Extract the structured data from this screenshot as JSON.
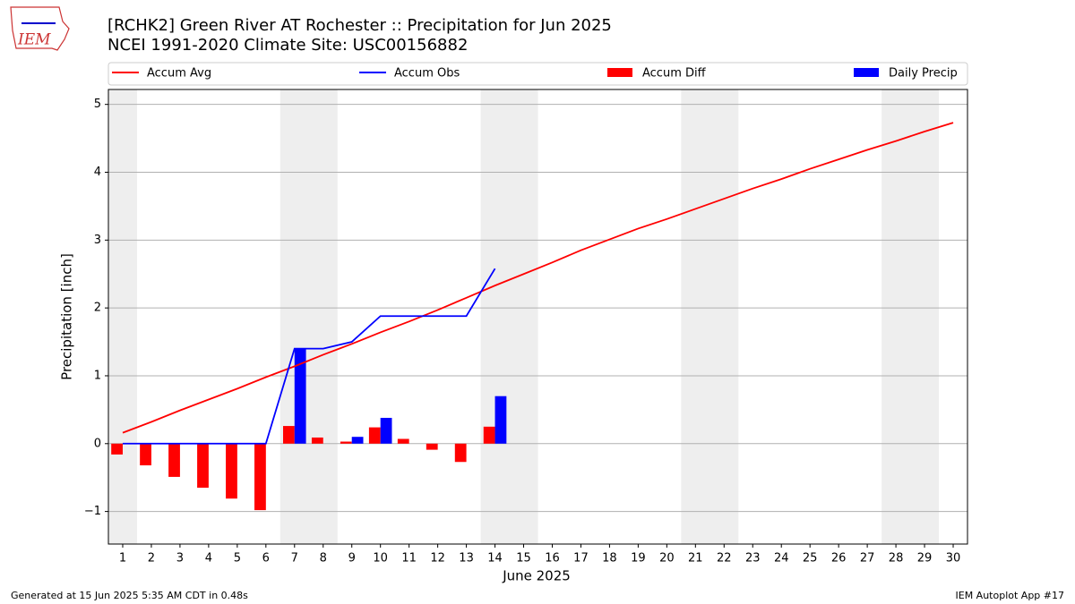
{
  "logo_text": "IEM",
  "footer_left": "Generated at 15 Jun 2025 5:35 AM CDT in 0.48s",
  "footer_right": "IEM Autoplot App #17",
  "chart_data": {
    "type": "combo",
    "title": "[RCHK2] Green River  AT Rochester :: Precipitation for Jun 2025",
    "subtitle": "NCEI 1991-2020 Climate Site: USC00156882",
    "x_label": "June 2025",
    "y_label": "Precipitation [inch]",
    "x": [
      1,
      2,
      3,
      4,
      5,
      6,
      7,
      8,
      9,
      10,
      11,
      12,
      13,
      14,
      15,
      16,
      17,
      18,
      19,
      20,
      21,
      22,
      23,
      24,
      25,
      26,
      27,
      28,
      29,
      30
    ],
    "xlim": [
      0.5,
      30.5
    ],
    "xticks": [
      1,
      2,
      3,
      4,
      5,
      6,
      7,
      8,
      9,
      10,
      11,
      12,
      13,
      14,
      15,
      16,
      17,
      18,
      19,
      20,
      21,
      22,
      23,
      24,
      25,
      26,
      27,
      28,
      29,
      30
    ],
    "ylim": [
      -1.48,
      5.22
    ],
    "yticks": [
      {
        "value": -1,
        "label": "−1"
      },
      0,
      1,
      2,
      3,
      4,
      5
    ],
    "grid": true,
    "shaded_spans": [
      [
        0.5,
        1.5
      ],
      [
        6.5,
        8.5
      ],
      [
        13.5,
        15.5
      ],
      [
        20.5,
        22.5
      ],
      [
        27.5,
        29.5
      ]
    ],
    "shade_color": "#eeeeee",
    "series": [
      {
        "name": "Accum Avg",
        "type": "line",
        "color": "#ff0000",
        "values": [
          0.16,
          0.32,
          0.49,
          0.65,
          0.81,
          0.98,
          1.14,
          1.31,
          1.47,
          1.64,
          1.8,
          1.97,
          2.15,
          2.33,
          2.5,
          2.67,
          2.85,
          3.01,
          3.17,
          3.31,
          3.46,
          3.61,
          3.76,
          3.9,
          4.05,
          4.19,
          4.33,
          4.46,
          4.6,
          4.73
        ]
      },
      {
        "name": "Accum Obs",
        "type": "line",
        "color": "#0000ff",
        "values": [
          0,
          0,
          0,
          0,
          0,
          0,
          1.4,
          1.4,
          1.5,
          1.88,
          1.88,
          1.88,
          1.88,
          2.58,
          null,
          null,
          null,
          null,
          null,
          null,
          null,
          null,
          null,
          null,
          null,
          null,
          null,
          null,
          null,
          null
        ]
      },
      {
        "name": "Accum Diff",
        "type": "bar",
        "offset": -0.4,
        "color": "#ff0000",
        "values": [
          -0.16,
          -0.32,
          -0.49,
          -0.65,
          -0.81,
          -0.98,
          0.26,
          0.09,
          0.03,
          0.24,
          0.07,
          -0.09,
          -0.27,
          0.25,
          null,
          null,
          null,
          null,
          null,
          null,
          null,
          null,
          null,
          null,
          null,
          null,
          null,
          null,
          null,
          null
        ]
      },
      {
        "name": "Daily Precip",
        "type": "bar",
        "offset": 0,
        "color": "#0000ff",
        "values": [
          0,
          0,
          0,
          0,
          0,
          0,
          1.4,
          0,
          0.1,
          0.38,
          0,
          0,
          0,
          0.7,
          null,
          null,
          null,
          null,
          null,
          null,
          null,
          null,
          null,
          null,
          null,
          null,
          null,
          null,
          null,
          null
        ]
      }
    ]
  }
}
